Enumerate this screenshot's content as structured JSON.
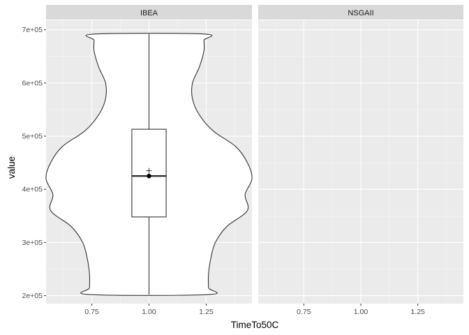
{
  "chart_data": {
    "type": "violin",
    "xlabel": "TimeTo50C",
    "ylabel": "value",
    "facets": [
      "IBEA",
      "NSGAII"
    ],
    "x_ticks": [
      0.75,
      1.0,
      1.25
    ],
    "x_tick_labels": [
      "0.75",
      "1.00",
      "1.25"
    ],
    "xlim": [
      0.55,
      1.45
    ],
    "y_ticks": [
      200000,
      300000,
      400000,
      500000,
      600000,
      700000
    ],
    "y_tick_labels": [
      "2e+05",
      "3e+05",
      "4e+05",
      "5e+05",
      "6e+05",
      "7e+05"
    ],
    "ylim": [
      185000,
      718000
    ],
    "grid": true,
    "violin": {
      "facet": "IBEA",
      "x": 1.0,
      "y_min": 202000,
      "y_max": 692000,
      "profile": [
        [
          202000,
          0.26
        ],
        [
          215000,
          0.26
        ],
        [
          240000,
          0.26
        ],
        [
          270000,
          0.27
        ],
        [
          300000,
          0.29
        ],
        [
          330000,
          0.34
        ],
        [
          360000,
          0.43
        ],
        [
          390000,
          0.42
        ],
        [
          420000,
          0.45
        ],
        [
          450000,
          0.43
        ],
        [
          480000,
          0.38
        ],
        [
          510000,
          0.28
        ],
        [
          540000,
          0.22
        ],
        [
          570000,
          0.19
        ],
        [
          600000,
          0.19
        ],
        [
          630000,
          0.22
        ],
        [
          660000,
          0.24
        ],
        [
          680000,
          0.24
        ],
        [
          692000,
          0.24
        ]
      ]
    },
    "boxplot": {
      "facet": "IBEA",
      "x": 1.0,
      "whisker_low": 202000,
      "q1": 348000,
      "median": 425000,
      "q3": 513000,
      "whisker_high": 692000,
      "mean": 435000,
      "box_half_width": 0.075
    },
    "median_point": {
      "x": 1.0,
      "y": 425000
    },
    "mean_marker": {
      "x": 1.0,
      "y": 435000,
      "symbol": "+"
    },
    "colors": {
      "panel_bg": "#ebebeb",
      "strip_bg": "#d9d9d9",
      "grid_major": "#ffffff",
      "violin_fill": "#ffffff",
      "outline": "#333333"
    }
  }
}
